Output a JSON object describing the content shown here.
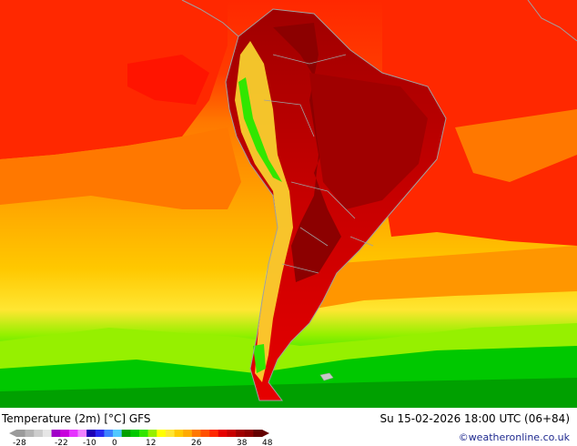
{
  "footer": {
    "title": "Temperature (2m) [°C] GFS",
    "datetime": "Su 15-02-2026 18:00 UTC (06+84)",
    "credit": "©weatheronline.co.uk"
  },
  "legend": {
    "colors": [
      "#9b9b9b",
      "#b4b4b4",
      "#cdcdcd",
      "#e6e6e6",
      "#a000c8",
      "#c800dc",
      "#e632ff",
      "#f082ff",
      "#1e00b4",
      "#2828f0",
      "#3c82ff",
      "#50c8ff",
      "#00a000",
      "#00c800",
      "#32e600",
      "#96f000",
      "#ffff00",
      "#ffe632",
      "#ffc800",
      "#ffaa00",
      "#ff7800",
      "#ff5000",
      "#ff2800",
      "#e60000",
      "#c80000",
      "#a00000",
      "#8c0000",
      "#640000"
    ],
    "ticks": [
      "-28",
      "-22",
      "-10",
      "0",
      "12",
      "26",
      "38",
      "48"
    ]
  },
  "map_colors": {
    "ocean_cold": "#00c800",
    "ocean_cool": "#96f000",
    "ocean_mild": "#ffc800",
    "ocean_warm": "#ff7800",
    "ocean_hot": "#ff2800",
    "land_hot": "#c80000",
    "land_very_hot": "#8c0000",
    "andes_cool": "#ffe632",
    "borders": "#a0a0a0"
  }
}
